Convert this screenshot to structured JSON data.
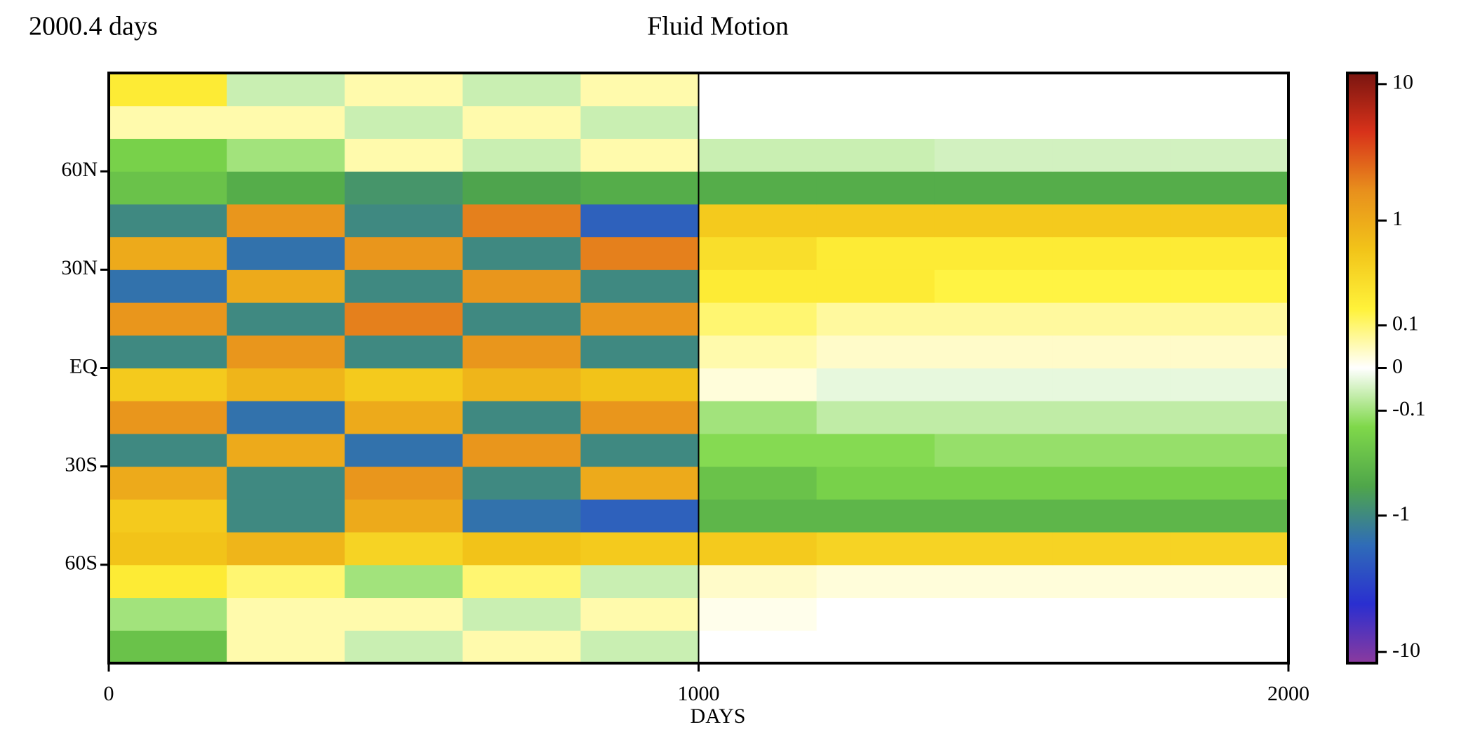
{
  "chart_data": {
    "type": "heatmap",
    "title": "Fluid Motion",
    "annotation": "2000.4 days",
    "xlabel": "DAYS",
    "x": [
      100,
      300,
      500,
      700,
      900,
      1100,
      1300,
      1500,
      1700,
      1900
    ],
    "y": [
      -85,
      -75,
      -65,
      -55,
      -45,
      -35,
      -25,
      -15,
      -5,
      5,
      15,
      25,
      35,
      45,
      55,
      65,
      75,
      85
    ],
    "z": [
      [
        -0.3,
        0.05,
        -0.05,
        0.05,
        -0.05,
        0,
        0,
        0,
        0,
        0
      ],
      [
        -0.1,
        0.05,
        0.05,
        -0.05,
        0.05,
        0.01,
        0,
        0,
        0,
        0
      ],
      [
        0.2,
        0.1,
        -0.1,
        0.1,
        -0.05,
        0.03,
        0.02,
        0.02,
        0.02,
        0.02
      ],
      [
        0.6,
        0.8,
        0.4,
        0.6,
        0.5,
        0.5,
        0.4,
        0.4,
        0.4,
        0.4
      ],
      [
        0.5,
        -1,
        1,
        -1.5,
        -2,
        -0.4,
        -0.4,
        -0.4,
        -0.4,
        -0.4
      ],
      [
        1,
        -1,
        1.5,
        -1,
        1,
        -0.3,
        -0.2,
        -0.2,
        -0.2,
        -0.2
      ],
      [
        -1,
        1,
        -1.5,
        1.5,
        -1,
        -0.15,
        -0.15,
        -0.12,
        -0.12,
        -0.12
      ],
      [
        1.5,
        -1.5,
        1,
        -1,
        1.5,
        -0.1,
        -0.06,
        -0.06,
        -0.06,
        -0.06
      ],
      [
        0.5,
        0.8,
        0.5,
        0.8,
        0.6,
        0.02,
        -0.02,
        -0.02,
        -0.02,
        -0.02
      ],
      [
        -1,
        1.5,
        -1,
        1.5,
        -1,
        0.05,
        0.03,
        0.03,
        0.03,
        0.03
      ],
      [
        1.5,
        -1,
        2,
        -1,
        1.5,
        0.1,
        0.06,
        0.06,
        0.06,
        0.06
      ],
      [
        -1.5,
        1,
        -1,
        1.5,
        -1,
        0.2,
        0.2,
        0.15,
        0.15,
        0.15
      ],
      [
        1,
        -1.5,
        1.5,
        -1,
        2,
        0.3,
        0.2,
        0.2,
        0.2,
        0.2
      ],
      [
        -1,
        1.5,
        -1,
        2,
        -2,
        0.5,
        0.5,
        0.5,
        0.5,
        0.5
      ],
      [
        -0.3,
        -0.5,
        -0.8,
        -0.6,
        -0.5,
        -0.5,
        -0.5,
        -0.5,
        -0.5,
        -0.5
      ],
      [
        -0.2,
        -0.1,
        0.05,
        -0.05,
        0.05,
        -0.05,
        -0.05,
        -0.04,
        -0.04,
        -0.04
      ],
      [
        0.05,
        0.05,
        -0.05,
        0.05,
        -0.05,
        0,
        0,
        0,
        0,
        0
      ],
      [
        0.2,
        -0.05,
        0.05,
        -0.05,
        0.05,
        0,
        0,
        0,
        0,
        0
      ]
    ],
    "xlim": [
      0,
      2000
    ],
    "xticks": [
      0,
      1000,
      2000
    ],
    "ylim": [
      -90,
      90
    ],
    "yticks": [
      {
        "value": -60,
        "label": "60S"
      },
      {
        "value": -30,
        "label": "30S"
      },
      {
        "value": 0,
        "label": "EQ"
      },
      {
        "value": 30,
        "label": "30N"
      },
      {
        "value": 60,
        "label": "60N"
      }
    ],
    "vline": 1000,
    "color_scale": "symlog",
    "clim": [
      -12,
      12
    ],
    "cticks": [
      -10,
      -1,
      -0.1,
      0,
      0.1,
      1,
      10
    ],
    "colormap": [
      "#8b3a9e",
      "#2a2fd0",
      "#2f6cb8",
      "#4fa64a",
      "#7fd84a",
      "#ffffff",
      "#fff23a",
      "#f2c419",
      "#e8901c",
      "#d8321a",
      "#7a1510"
    ]
  }
}
